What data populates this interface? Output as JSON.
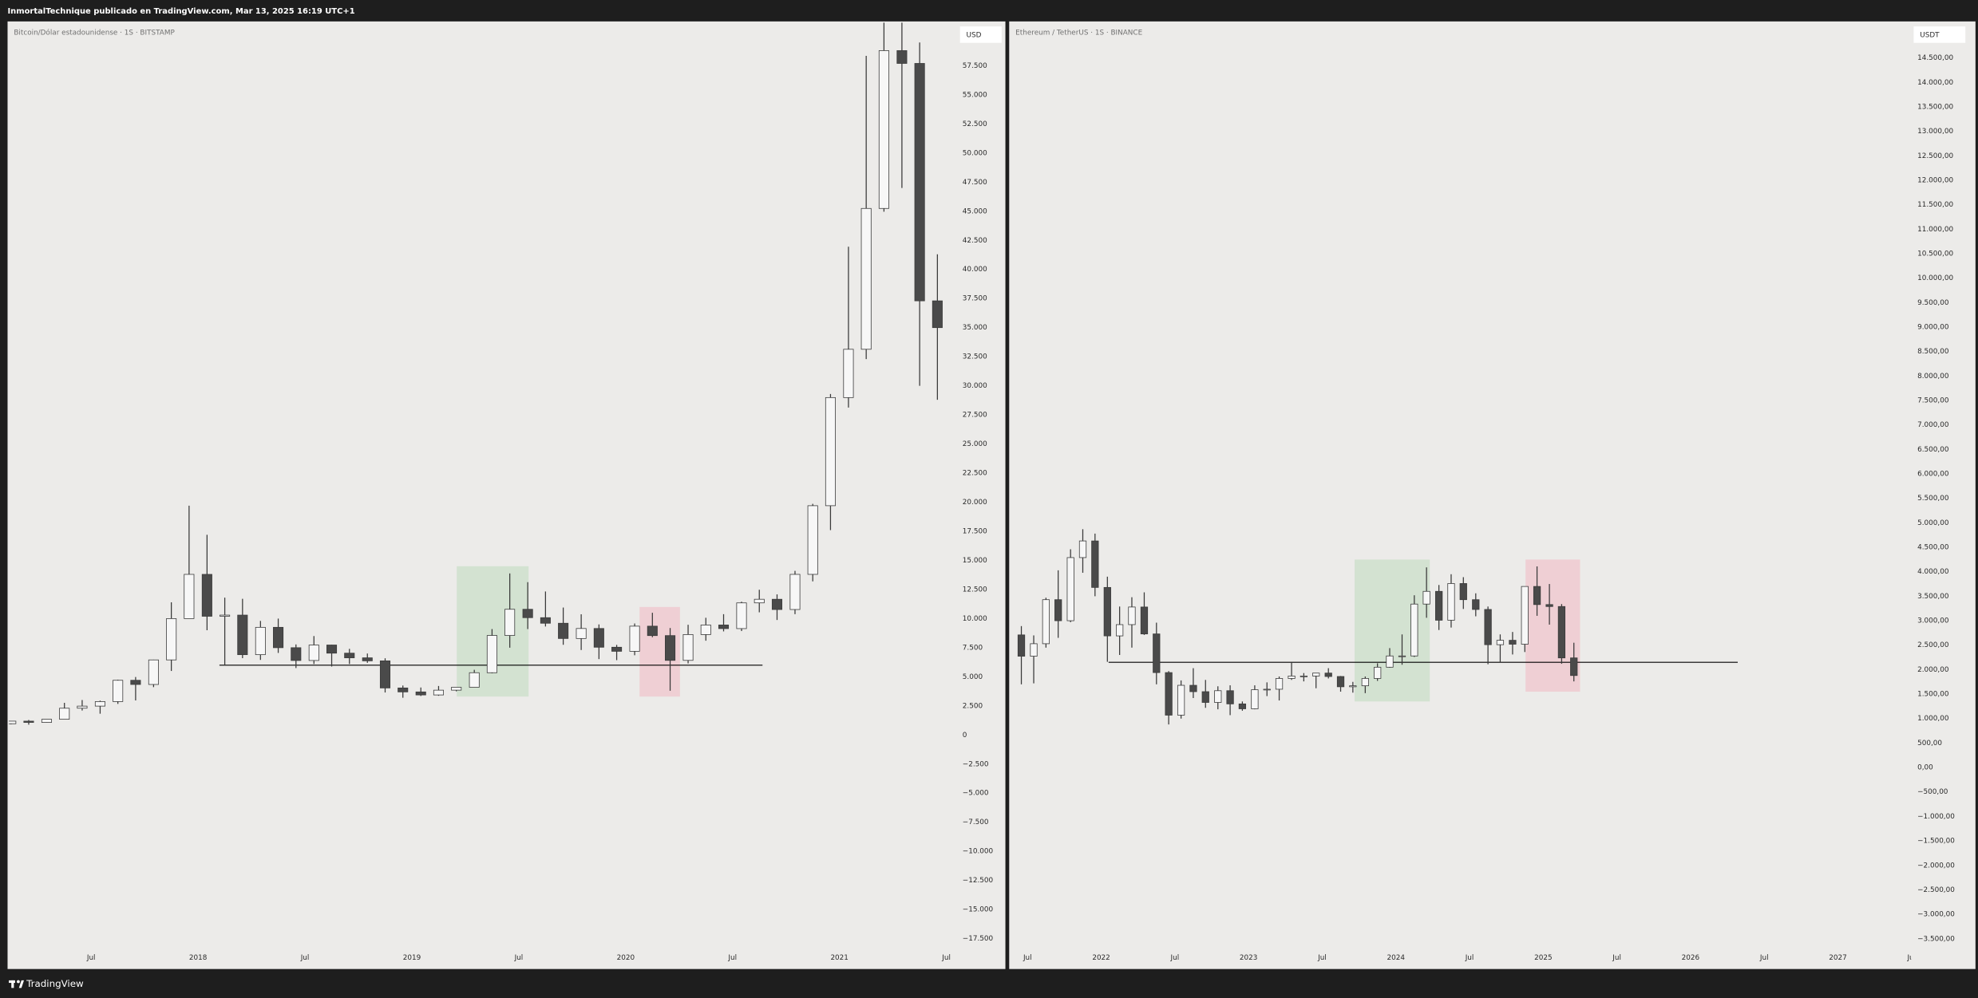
{
  "header": "InmortalTechnique publicado en TradingView.com, Mar 13, 2025 16:19 UTC+1",
  "footer": "TradingView",
  "chart_data": [
    {
      "type": "candlestick",
      "title": "Bitcoin/Dólar estadounidense · 1S · BITSTAMP",
      "currency": "USD",
      "up_color": "#f7f7f7",
      "down_color": "#4a4a4a",
      "wick_color": "#3a3a3a",
      "x": [
        2017.125,
        2017.208,
        2017.292,
        2017.375,
        2017.458,
        2017.542,
        2017.625,
        2017.708,
        2017.792,
        2017.875,
        2017.958,
        2018.042,
        2018.125,
        2018.208,
        2018.292,
        2018.375,
        2018.458,
        2018.542,
        2018.625,
        2018.708,
        2018.792,
        2018.875,
        2018.958,
        2019.042,
        2019.125,
        2019.208,
        2019.292,
        2019.375,
        2019.458,
        2019.542,
        2019.625,
        2019.708,
        2019.792,
        2019.875,
        2019.958,
        2020.042,
        2020.125,
        2020.208,
        2020.292,
        2020.375,
        2020.458,
        2020.542,
        2020.625,
        2020.708,
        2020.792,
        2020.875,
        2020.958,
        2021.042,
        2021.125,
        2021.208,
        2021.292,
        2021.375,
        2021.458
      ],
      "open": [
        965,
        1190,
        1080,
        1350,
        2300,
        2480,
        2870,
        4700,
        4340,
        6450,
        10000,
        13800,
        10200,
        10300,
        6900,
        9250,
        7500,
        6400,
        7730,
        7030,
        6630,
        6370,
        4040,
        3700,
        3440,
        3850,
        4100,
        5350,
        8550,
        10800,
        10080,
        9600,
        8290,
        9150,
        7540,
        7190,
        9350,
        8540,
        6410,
        8630,
        9450,
        9140,
        11350,
        11660,
        10780,
        13800,
        19700,
        28990,
        33140,
        45240,
        58800,
        57700,
        37300
      ],
      "high": [
        1200,
        1290,
        1350,
        2760,
        3000,
        2950,
        4750,
        4980,
        6470,
        11400,
        19700,
        17200,
        11800,
        11700,
        9800,
        10000,
        7780,
        8500,
        7750,
        7400,
        7000,
        6590,
        4250,
        4080,
        4210,
        4100,
        5600,
        9100,
        13880,
        13130,
        12330,
        10950,
        10370,
        9500,
        7740,
        9580,
        10500,
        9190,
        9470,
        10070,
        10380,
        11450,
        12480,
        12080,
        14100,
        19860,
        29300,
        41950,
        58350,
        61780,
        64900,
        59500,
        41300
      ],
      "low": [
        920,
        890,
        1060,
        1350,
        2100,
        1830,
        2670,
        2970,
        4110,
        5500,
        10000,
        9000,
        6000,
        6600,
        6450,
        7050,
        5750,
        6100,
        5880,
        6100,
        6200,
        3650,
        3200,
        3350,
        3370,
        3750,
        4100,
        5300,
        7500,
        9100,
        9320,
        7750,
        7300,
        6520,
        6430,
        6850,
        8400,
        3800,
        6150,
        8100,
        8900,
        8930,
        10540,
        9880,
        10380,
        13200,
        17600,
        28130,
        32300,
        44960,
        47000,
        30000,
        28800
      ],
      "close": [
        1190,
        1080,
        1350,
        2300,
        2480,
        2870,
        4700,
        4340,
        6450,
        10000,
        13800,
        10200,
        10300,
        6900,
        9250,
        7500,
        6400,
        7730,
        7030,
        6630,
        6370,
        4040,
        3700,
        3440,
        3850,
        4100,
        5350,
        8550,
        10800,
        10080,
        9600,
        8290,
        9150,
        7540,
        7190,
        9350,
        8540,
        6410,
        8630,
        9450,
        9140,
        11350,
        11660,
        10780,
        13800,
        19700,
        28990,
        33140,
        45240,
        58800,
        57700,
        37300,
        35000
      ],
      "xlim": [
        2017.115,
        2021.54
      ],
      "xticks": [
        {
          "value": 2017.5,
          "label": "Jul"
        },
        2018,
        {
          "value": 2018.5,
          "label": "Jul"
        },
        2019,
        {
          "value": 2019.5,
          "label": "Jul"
        },
        2020,
        {
          "value": 2020.5,
          "label": "Jul"
        },
        2021,
        {
          "value": 2021.5,
          "label": "Jul"
        }
      ],
      "ylim": [
        -20000,
        61200
      ],
      "yticks": [
        {
          "value": -17500,
          "label": "−17.500"
        },
        {
          "value": -15000,
          "label": "−15.000"
        },
        {
          "value": -12500,
          "label": "−12.500"
        },
        {
          "value": -10000,
          "label": "−10.000"
        },
        {
          "value": -7500,
          "label": "−7.500"
        },
        {
          "value": -5000,
          "label": "−5.000"
        },
        {
          "value": -2500,
          "label": "−2.500"
        },
        0,
        {
          "value": 2500,
          "label": "2.500"
        },
        {
          "value": 5000,
          "label": "5.000"
        },
        {
          "value": 7500,
          "label": "7.500"
        },
        {
          "value": 10000,
          "label": "10.000"
        },
        {
          "value": 12500,
          "label": "12.500"
        },
        {
          "value": 15000,
          "label": "15.000"
        },
        {
          "value": 17500,
          "label": "17.500"
        },
        {
          "value": 20000,
          "label": "20.000"
        },
        {
          "value": 22500,
          "label": "22.500"
        },
        {
          "value": 25000,
          "label": "25.000"
        },
        {
          "value": 27500,
          "label": "27.500"
        },
        {
          "value": 30000,
          "label": "30.000"
        },
        {
          "value": 32500,
          "label": "32.500"
        },
        {
          "value": 35000,
          "label": "35.000"
        },
        {
          "value": 37500,
          "label": "37.500"
        },
        {
          "value": 40000,
          "label": "40.000"
        },
        {
          "value": 42500,
          "label": "42.500"
        },
        {
          "value": 45000,
          "label": "45.000"
        },
        {
          "value": 47500,
          "label": "47.500"
        },
        {
          "value": 50000,
          "label": "50.000"
        },
        {
          "value": 52500,
          "label": "52.500"
        },
        {
          "value": 55000,
          "label": "55.000"
        },
        {
          "value": 57500,
          "label": "57.500"
        }
      ],
      "grid": false,
      "hline": {
        "y": 6000,
        "x": [
          2018.1,
          2020.64
        ],
        "color": "#000000"
      },
      "boxes": [
        {
          "x": [
            2019.21,
            2019.546
          ],
          "y": [
            3300,
            14500
          ],
          "color": "#d3e2d1"
        },
        {
          "x": [
            2020.065,
            2020.254
          ],
          "y": [
            3300,
            11000
          ],
          "color": "#efcfd4"
        }
      ]
    },
    {
      "type": "candlestick",
      "title": "Ethereum / TetherUS · 1S · BINANCE",
      "currency": "USDT",
      "up_color": "#f7f7f7",
      "down_color": "#4a4a4a",
      "wick_color": "#3a3a3a",
      "x": [
        2021.458,
        2021.542,
        2021.625,
        2021.708,
        2021.792,
        2021.875,
        2021.958,
        2022.042,
        2022.125,
        2022.208,
        2022.292,
        2022.375,
        2022.458,
        2022.542,
        2022.625,
        2022.708,
        2022.792,
        2022.875,
        2022.958,
        2023.042,
        2023.125,
        2023.208,
        2023.292,
        2023.375,
        2023.458,
        2023.542,
        2023.625,
        2023.708,
        2023.792,
        2023.875,
        2023.958,
        2024.042,
        2024.125,
        2024.208,
        2024.292,
        2024.375,
        2024.458,
        2024.542,
        2024.625,
        2024.708,
        2024.792,
        2024.875,
        2024.958,
        2025.042,
        2025.125,
        2025.208
      ],
      "open": [
        2710,
        2275,
        2530,
        3430,
        3000,
        4290,
        4630,
        3680,
        2690,
        2920,
        3280,
        2730,
        1940,
        1070,
        1680,
        1550,
        1330,
        1570,
        1300,
        1200,
        1590,
        1600,
        1820,
        1870,
        1870,
        1930,
        1860,
        1650,
        1670,
        1820,
        2050,
        2280,
        2280,
        3340,
        3600,
        3010,
        3760,
        3430,
        3230,
        2510,
        2600,
        2520,
        3700,
        3330,
        3290,
        2240
      ],
      "high": [
        2890,
        2700,
        3470,
        4030,
        4460,
        4870,
        4780,
        3900,
        3290,
        3480,
        3580,
        2960,
        1970,
        1780,
        2030,
        1790,
        1660,
        1680,
        1350,
        1680,
        1740,
        1860,
        2140,
        1930,
        1930,
        2030,
        1870,
        1750,
        1860,
        2130,
        2440,
        2720,
        3520,
        4090,
        3730,
        3950,
        3890,
        3560,
        3290,
        2720,
        2770,
        3680,
        4110,
        3750,
        3340,
        2550
      ],
      "low": [
        1700,
        1720,
        2450,
        2650,
        2970,
        3980,
        3500,
        2160,
        2300,
        2450,
        2710,
        1700,
        880,
        1000,
        1420,
        1220,
        1190,
        1070,
        1160,
        1190,
        1460,
        1370,
        1790,
        1760,
        1620,
        1820,
        1550,
        1530,
        1520,
        1770,
        2040,
        2100,
        2260,
        3060,
        2810,
        2860,
        3240,
        3090,
        2110,
        2150,
        2310,
        2360,
        3100,
        2920,
        2120,
        1760
      ],
      "close": [
        2275,
        2530,
        3430,
        3000,
        4290,
        4630,
        3680,
        2690,
        2920,
        3280,
        2730,
        1940,
        1070,
        1680,
        1550,
        1330,
        1570,
        1300,
        1200,
        1590,
        1600,
        1820,
        1870,
        1870,
        1930,
        1860,
        1650,
        1670,
        1820,
        2050,
        2280,
        2280,
        3340,
        3600,
        3010,
        3760,
        3430,
        3230,
        2510,
        2600,
        2520,
        3700,
        3330,
        3290,
        2240,
        1880
      ],
      "xlim": [
        2021.384,
        2027.497
      ],
      "xticks": [
        {
          "value": 2021.5,
          "label": "Jul"
        },
        2022,
        {
          "value": 2022.5,
          "label": "Jul"
        },
        2023,
        {
          "value": 2023.5,
          "label": "Jul"
        },
        2024,
        {
          "value": 2024.5,
          "label": "Jul"
        },
        2025,
        {
          "value": 2025.5,
          "label": "Jul"
        },
        2026,
        {
          "value": 2026.5,
          "label": "Jul"
        },
        2027,
        {
          "value": 2027.5,
          "label": "Jul"
        }
      ],
      "ylim": [
        -4092,
        15221
      ],
      "yticks": [
        {
          "value": -3500,
          "label": "−3.500,00"
        },
        {
          "value": -3000,
          "label": "−3.000,00"
        },
        {
          "value": -2500,
          "label": "−2.500,00"
        },
        {
          "value": -2000,
          "label": "−2.000,00"
        },
        {
          "value": -1500,
          "label": "−1.500,00"
        },
        {
          "value": -1000,
          "label": "−1.000,00"
        },
        {
          "value": -500,
          "label": "−500,00"
        },
        {
          "value": 0,
          "label": "0,00"
        },
        {
          "value": 500,
          "label": "500,00"
        },
        {
          "value": 1000,
          "label": "1.000,00"
        },
        {
          "value": 1500,
          "label": "1.500,00"
        },
        {
          "value": 2000,
          "label": "2.000,00"
        },
        {
          "value": 2500,
          "label": "2.500,00"
        },
        {
          "value": 3000,
          "label": "3.000,00"
        },
        {
          "value": 3500,
          "label": "3.500,00"
        },
        {
          "value": 4000,
          "label": "4.000,00"
        },
        {
          "value": 4500,
          "label": "4.500,00"
        },
        {
          "value": 5000,
          "label": "5.000,00"
        },
        {
          "value": 5500,
          "label": "5.500,00"
        },
        {
          "value": 6000,
          "label": "6.000,00"
        },
        {
          "value": 6500,
          "label": "6.500,00"
        },
        {
          "value": 7000,
          "label": "7.000,00"
        },
        {
          "value": 7500,
          "label": "7.500,00"
        },
        {
          "value": 8000,
          "label": "8.000,00"
        },
        {
          "value": 8500,
          "label": "8.500,00"
        },
        {
          "value": 9000,
          "label": "9.000,00"
        },
        {
          "value": 9500,
          "label": "9.500,00"
        },
        {
          "value": 10000,
          "label": "10.000,00"
        },
        {
          "value": 10500,
          "label": "10.500,00"
        },
        {
          "value": 11000,
          "label": "11.000,00"
        },
        {
          "value": 11500,
          "label": "11.500,00"
        },
        {
          "value": 12000,
          "label": "12.000,00"
        },
        {
          "value": 12500,
          "label": "12.500,00"
        },
        {
          "value": 13000,
          "label": "13.000,00"
        },
        {
          "value": 13500,
          "label": "13.500,00"
        },
        {
          "value": 14000,
          "label": "14.000,00"
        },
        {
          "value": 14500,
          "label": "14.500,00"
        }
      ],
      "grid": false,
      "hline": {
        "y": 2150,
        "x": [
          2022.05,
          2026.32
        ],
        "color": "#000000"
      },
      "boxes": [
        {
          "x": [
            2023.72,
            2024.23
          ],
          "y": [
            1350,
            4250
          ],
          "color": "#d3e2d1"
        },
        {
          "x": [
            2024.88,
            2025.25
          ],
          "y": [
            1550,
            4250
          ],
          "color": "#efcfd4"
        }
      ]
    }
  ]
}
